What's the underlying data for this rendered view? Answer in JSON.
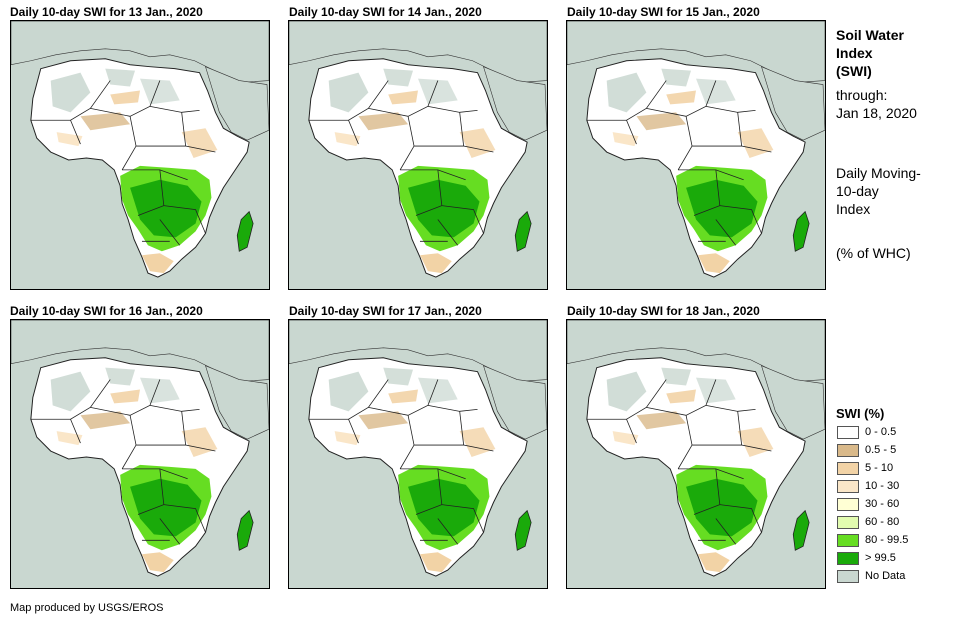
{
  "panels": [
    {
      "title": "Daily 10-day SWI for 13 Jan., 2020"
    },
    {
      "title": "Daily 10-day SWI for 14 Jan., 2020"
    },
    {
      "title": "Daily 10-day SWI for 15 Jan., 2020"
    },
    {
      "title": "Daily 10-day SWI for 16 Jan., 2020"
    },
    {
      "title": "Daily 10-day SWI for 17 Jan., 2020"
    },
    {
      "title": "Daily 10-day SWI for 18 Jan., 2020"
    }
  ],
  "side": {
    "title_line1": "Soil Water",
    "title_line2": "Index",
    "title_line3": "(SWI)",
    "through_label": "through:",
    "through_date": "Jan 18, 2020",
    "desc_line1": "Daily Moving-",
    "desc_line2": "10-day",
    "desc_line3": "Index",
    "units": "(% of WHC)"
  },
  "legend": {
    "title": "SWI (%)",
    "items": [
      {
        "label": "0 - 0.5",
        "color": "#ffffff"
      },
      {
        "label": "0.5 - 5",
        "color": "#d9b98a"
      },
      {
        "label": "5 - 10",
        "color": "#f2d3a6"
      },
      {
        "label": "10 - 30",
        "color": "#fae6c8"
      },
      {
        "label": "30 - 60",
        "color": "#ffffd4"
      },
      {
        "label": "60 - 80",
        "color": "#e2fcb0"
      },
      {
        "label": "80 - 99.5",
        "color": "#66dd22"
      },
      {
        "label": "> 99.5",
        "color": "#1aaa0a"
      },
      {
        "label": "No Data",
        "color": "#c9d7d0"
      }
    ]
  },
  "credit": "Map produced by USGS/EROS"
}
